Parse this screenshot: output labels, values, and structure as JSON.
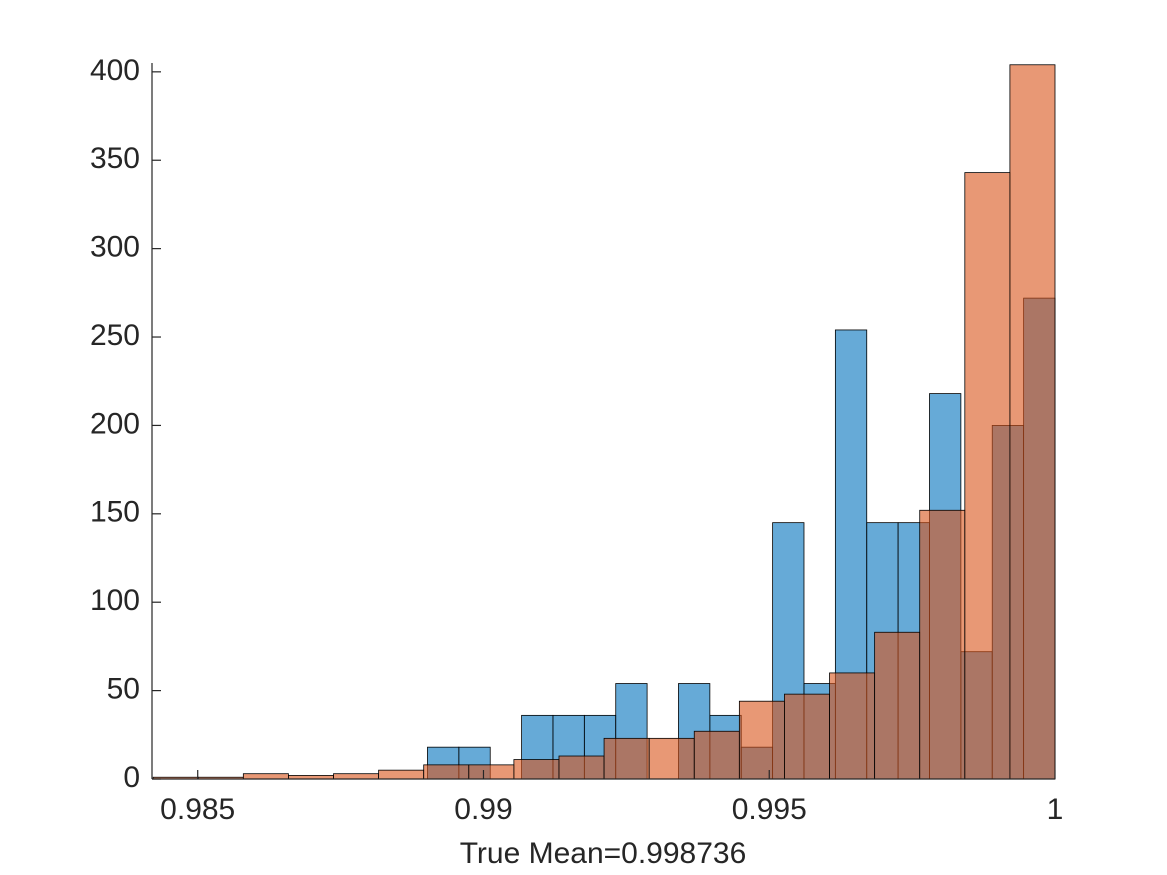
{
  "chart_data": {
    "type": "histogram",
    "xlabel": "True Mean=0.998736",
    "xlim": [
      0.9842,
      1.0
    ],
    "ylim": [
      0,
      405
    ],
    "xticks": [
      0.985,
      0.99,
      0.995,
      1
    ],
    "yticks": [
      0,
      50,
      100,
      150,
      200,
      250,
      300,
      350,
      400
    ],
    "series": [
      {
        "color": "#0072bd",
        "bins": [
          0.98902,
          0.989569,
          0.990118,
          0.990667,
          0.991216,
          0.991765,
          0.992314,
          0.992863,
          0.993412,
          0.993961,
          0.99451,
          0.995059,
          0.995608,
          0.996157,
          0.996706,
          0.997255,
          0.997804,
          0.998353,
          0.998902,
          0.999451,
          1.0
        ],
        "values": [
          18,
          18,
          0,
          36,
          36,
          36,
          54,
          0,
          54,
          36,
          18,
          145,
          54,
          254,
          145,
          145,
          218,
          72,
          200,
          272
        ]
      },
      {
        "color": "#d95319",
        "bins": [
          0.98422,
          0.985009,
          0.985798,
          0.986587,
          0.987376,
          0.988165,
          0.988954,
          0.989743,
          0.990532,
          0.991321,
          0.99211,
          0.992899,
          0.993688,
          0.994477,
          0.995266,
          0.996055,
          0.996844,
          0.997633,
          0.998422,
          0.999211,
          1.0
        ],
        "values": [
          1,
          1,
          3,
          2,
          3,
          5,
          8,
          8,
          11,
          13,
          23,
          23,
          27,
          44,
          48,
          60,
          83,
          152,
          343,
          404
        ]
      }
    ]
  }
}
